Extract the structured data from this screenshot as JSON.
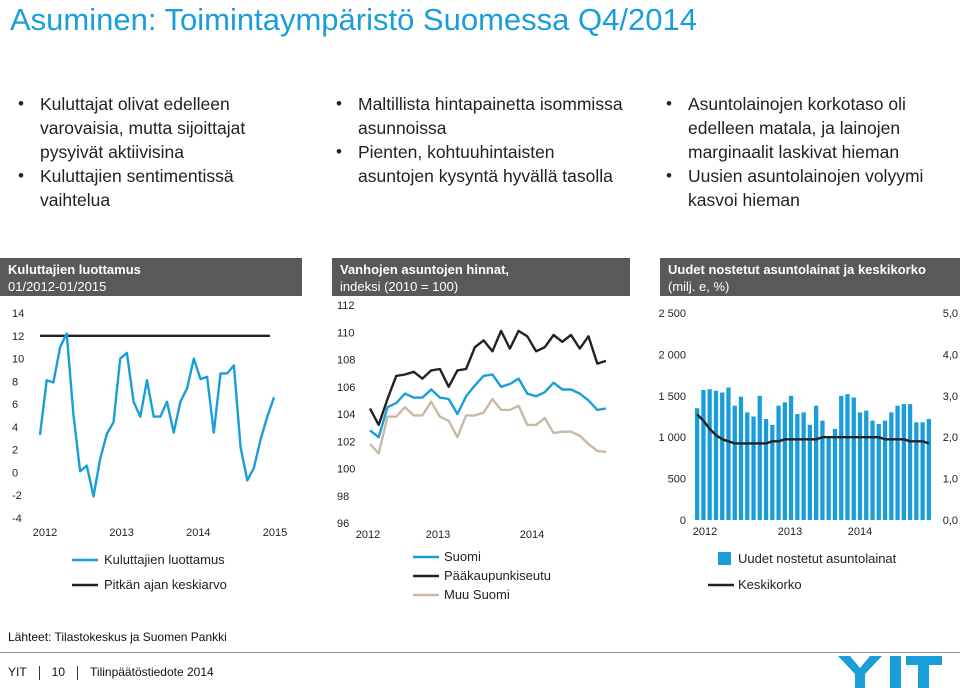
{
  "title": "Asuminen: Toimintaympäristö Suomessa Q4/2014",
  "columns": [
    {
      "bullets": [
        "Kuluttajat olivat edelleen varovaisia, mutta sijoittajat pysyivät aktiivisina",
        "Kuluttajien sentimentissä vaihtelua"
      ]
    },
    {
      "bullets": [
        "Maltillista hintapainetta isommissa asunnoissa",
        "Pienten, kohtuuhintaisten asuntojen kysyntä hyvällä tasolla"
      ]
    },
    {
      "bullets": [
        "Asuntolainojen korkotaso oli edelleen matala, ja lainojen marginaalit laskivat hieman",
        "Uusien asuntolainojen volyymi kasvoi hieman"
      ]
    }
  ],
  "charts": [
    {
      "title": "Kuluttajien luottamus",
      "subtitle": "01/2012-01/2015"
    },
    {
      "title": "Vanhojen asuntojen hinnat,",
      "subtitle": "indeksi (2010 = 100)"
    },
    {
      "title": "Uudet nostetut asuntolainat ja keskikorko",
      "subtitle": "(milj. e, %)"
    }
  ],
  "source": "Lähteet: Tilastokeskus ja Suomen Pankki",
  "footer": {
    "company": "YIT",
    "page": "10",
    "doc": "Tilinpäätöstiedote 2014",
    "logo": "YIT"
  },
  "colors": {
    "blue": "#1a9ed9",
    "dark": "#222222",
    "header": "#58595b",
    "tan": "#c9b8a3"
  },
  "chart_data": [
    {
      "type": "line",
      "title": "Kuluttajien luottamus 01/2012-01/2015",
      "ylim": [
        -4,
        14
      ],
      "yticks": [
        "14",
        "12",
        "10",
        "8",
        "6",
        "4",
        "2",
        "0",
        "-2",
        "-4"
      ],
      "xticks": [
        "2012",
        "2013",
        "2014",
        "2015"
      ],
      "series": [
        {
          "name": "Kuluttajien luottamus",
          "color": "#1a9ed9",
          "values": [
            3.3,
            8.1,
            7.9,
            11.0,
            12.2,
            5.1,
            0.1,
            0.6,
            -2.1,
            1.2,
            3.4,
            4.4,
            10.0,
            10.5,
            6.2,
            4.9,
            8.1,
            4.9,
            4.9,
            6.2,
            3.5,
            6.2,
            7.4,
            10.0,
            8.2,
            8.4,
            3.5,
            8.7,
            8.7,
            9.4,
            2.2,
            -0.7,
            0.4,
            2.9,
            4.9,
            6.6
          ]
        },
        {
          "name": "Pitkän ajan keskiarvo",
          "color": "#222222",
          "values": [
            12
          ]
        }
      ],
      "legend": [
        "Kuluttajien luottamus",
        "Pitkän ajan keskiarvo"
      ]
    },
    {
      "type": "line",
      "title": "Vanhojen asuntojen hinnat, indeksi (2010 = 100)",
      "ylim": [
        96,
        112
      ],
      "yticks": [
        "112",
        "110",
        "108",
        "106",
        "104",
        "102",
        "100",
        "98",
        "96"
      ],
      "xticks": [
        "2012",
        "2013",
        "2014"
      ],
      "series": [
        {
          "name": "Suomi",
          "color": "#1a9ed9",
          "values": [
            102.8,
            102.3,
            104.5,
            104.8,
            105.5,
            105.2,
            105.2,
            105.8,
            105.2,
            105.1,
            104.0,
            105.3,
            106.1,
            106.8,
            106.9,
            106.0,
            106.2,
            106.6,
            105.5,
            105.3,
            105.6,
            106.3,
            105.8,
            105.8,
            105.5,
            105.0,
            104.3,
            104.4
          ]
        },
        {
          "name": "Pääkaupunkiseutu",
          "color": "#222222",
          "values": [
            104.4,
            103.2,
            105.1,
            106.8,
            106.9,
            107.1,
            106.6,
            107.2,
            107.3,
            106.0,
            107.2,
            107.3,
            108.9,
            109.4,
            108.6,
            110.1,
            108.8,
            110.1,
            109.7,
            108.6,
            108.9,
            109.8,
            109.3,
            109.8,
            108.8,
            109.7,
            107.7,
            107.9
          ]
        },
        {
          "name": "Muu Suomi",
          "color": "#c9b8a3",
          "values": [
            101.8,
            101.1,
            103.8,
            103.8,
            104.5,
            103.9,
            103.9,
            104.9,
            103.8,
            103.5,
            102.3,
            103.9,
            103.9,
            104.1,
            105.1,
            104.3,
            104.3,
            104.6,
            103.2,
            103.2,
            103.7,
            102.6,
            102.7,
            102.7,
            102.4,
            101.8,
            101.3,
            101.2
          ]
        }
      ],
      "legend": [
        "Suomi",
        "Pääkaupunkiseutu",
        "Muu Suomi"
      ]
    },
    {
      "type": "bar",
      "title": "Uudet nostetut asuntolainat ja keskikorko (milj. e, %)",
      "ylim": [
        0,
        2500
      ],
      "y2lim": [
        0,
        5
      ],
      "yticks": [
        "2 500",
        "2 000",
        "1 500",
        "1 000",
        "500",
        "0"
      ],
      "y2ticks": [
        "5,0",
        "4,0",
        "3,0",
        "2,0",
        "1,0",
        "0,0"
      ],
      "xticks": [
        "2012",
        "2013",
        "2014"
      ],
      "series": [
        {
          "name": "Uudet nostetut asuntolainat",
          "color": "#1a9ed9",
          "values": [
            1350,
            1570,
            1580,
            1560,
            1540,
            1600,
            1380,
            1490,
            1300,
            1250,
            1500,
            1220,
            1150,
            1380,
            1420,
            1500,
            1280,
            1300,
            1150,
            1380,
            1200,
            1000,
            1100,
            1500,
            1520,
            1480,
            1300,
            1320,
            1200,
            1160,
            1200,
            1300,
            1380,
            1400,
            1400,
            1180,
            1180,
            1220
          ]
        },
        {
          "name": "Keskikorko",
          "color": "#222222",
          "values": [
            2.55,
            2.4,
            2.2,
            2.05,
            1.95,
            1.9,
            1.85,
            1.85,
            1.85,
            1.85,
            1.85,
            1.85,
            1.9,
            1.9,
            1.95,
            1.95,
            1.95,
            1.95,
            1.95,
            1.95,
            2.0,
            2.0,
            2.0,
            2.0,
            2.0,
            2.0,
            2.0,
            2.0,
            2.0,
            2.0,
            1.95,
            1.95,
            1.95,
            1.95,
            1.9,
            1.9,
            1.9,
            1.85
          ]
        }
      ],
      "legend": [
        "Uudet nostetut asuntolainat",
        "Keskikorko"
      ]
    }
  ]
}
